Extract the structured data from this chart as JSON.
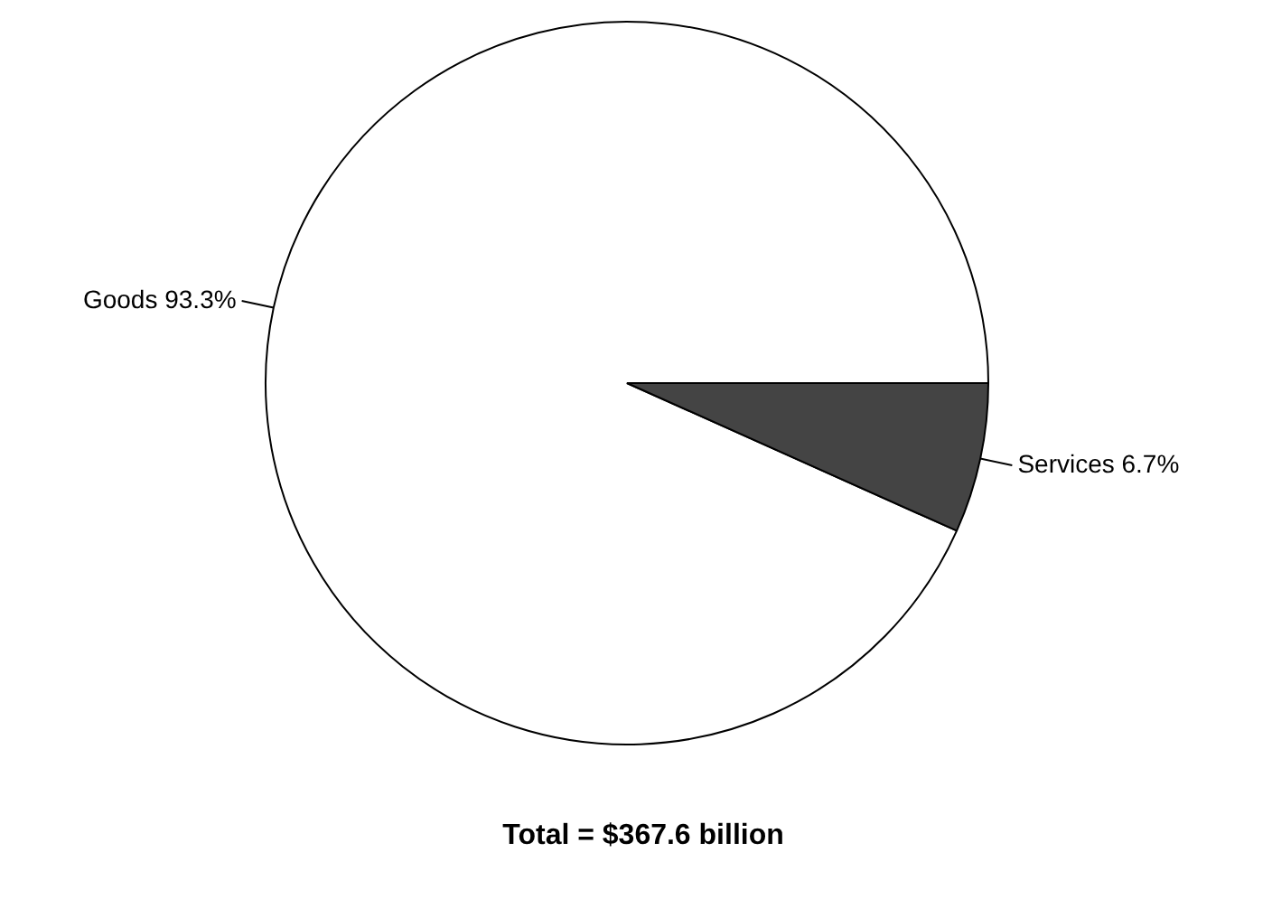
{
  "chart_data": {
    "type": "pie",
    "categories": [
      "Goods",
      "Services"
    ],
    "values": [
      93.3,
      6.7
    ],
    "value_labels": [
      "93.3%",
      "6.7%"
    ],
    "colors": [
      "#ffffff",
      "#444444"
    ],
    "legend": false,
    "annotations": [
      "Total = $367.6 billion"
    ]
  }
}
